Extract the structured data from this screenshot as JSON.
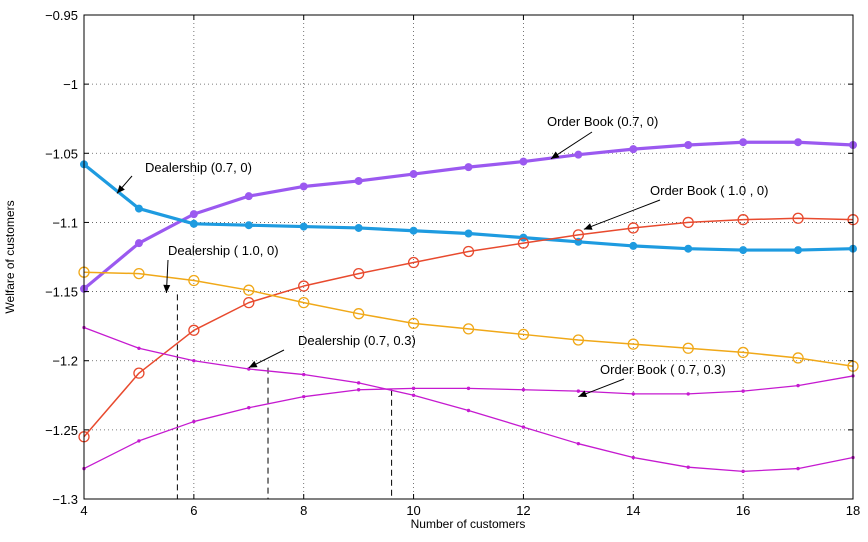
{
  "chart_data": {
    "type": "line",
    "title": "",
    "xlabel": "Number of customers",
    "ylabel": "Welfare of customers",
    "xlim": [
      4,
      18
    ],
    "ylim": [
      -1.3,
      -0.95
    ],
    "grid": true,
    "x_ticks": [
      4,
      6,
      8,
      10,
      12,
      14,
      16,
      18
    ],
    "x_tick_labels": [
      "4",
      "6",
      "8",
      "10",
      "12",
      "14",
      "16",
      "18"
    ],
    "y_ticks": [
      -1.3,
      -1.25,
      -1.2,
      -1.15,
      -1.1,
      -1.05,
      -1.0,
      -0.95
    ],
    "y_tick_labels": [
      "−1.3",
      "−1.25",
      "−1.2",
      "−1.15",
      "−1.1",
      "−1.05",
      "−1",
      "−0.95"
    ],
    "x": [
      4,
      5,
      6,
      7,
      8,
      9,
      10,
      11,
      12,
      13,
      14,
      15,
      16,
      17,
      18
    ],
    "series": [
      {
        "name": "Order Book (0.7, 0)",
        "color": "#9b59f0",
        "marker": "filled-dot",
        "values": [
          -1.148,
          -1.115,
          -1.094,
          -1.081,
          -1.074,
          -1.07,
          -1.065,
          -1.06,
          -1.056,
          -1.051,
          -1.047,
          -1.044,
          -1.042,
          -1.042,
          -1.044
        ]
      },
      {
        "name": "Dealership (0.7, 0)",
        "color": "#1e9be0",
        "marker": "filled-dot",
        "values": [
          -1.058,
          -1.09,
          -1.101,
          -1.102,
          -1.103,
          -1.104,
          -1.106,
          -1.108,
          -1.111,
          -1.114,
          -1.117,
          -1.119,
          -1.12,
          -1.12,
          -1.119
        ]
      },
      {
        "name": "Order Book ( 1.0 , 0)",
        "color": "#e84a2e",
        "marker": "open-circle",
        "values": [
          -1.255,
          -1.209,
          -1.178,
          -1.158,
          -1.146,
          -1.137,
          -1.129,
          -1.121,
          -1.115,
          -1.109,
          -1.104,
          -1.1,
          -1.098,
          -1.097,
          -1.098
        ]
      },
      {
        "name": "Dealership ( 1.0, 0)",
        "color": "#f0a818",
        "marker": "open-circle",
        "values": [
          -1.136,
          -1.137,
          -1.142,
          -1.149,
          -1.158,
          -1.166,
          -1.173,
          -1.177,
          -1.181,
          -1.185,
          -1.188,
          -1.191,
          -1.194,
          -1.198,
          -1.204
        ]
      },
      {
        "name": "Dealership (0.7, 0.3)",
        "color": "#c51ad0",
        "marker": "small-dot",
        "values": [
          -1.176,
          -1.191,
          -1.2,
          -1.206,
          -1.21,
          -1.216,
          -1.225,
          -1.236,
          -1.248,
          -1.26,
          -1.27,
          -1.277,
          -1.28,
          -1.278,
          -1.27
        ]
      },
      {
        "name": "Order Book ( 0.7, 0.3)",
        "color": "#c51ad0",
        "marker": "small-dot",
        "values": [
          -1.278,
          -1.258,
          -1.244,
          -1.234,
          -1.226,
          -1.221,
          -1.22,
          -1.22,
          -1.221,
          -1.222,
          -1.224,
          -1.224,
          -1.222,
          -1.218,
          -1.211
        ]
      }
    ],
    "annotations": [
      {
        "text": "Dealership (0.7, 0)",
        "target": [
          4.6,
          -1.079
        ]
      },
      {
        "text": "Order Book (0.7, 0)",
        "target": [
          12.5,
          -1.054
        ]
      },
      {
        "text": "Order Book  ( 1.0 , 0)",
        "target": [
          13.1,
          -1.105
        ]
      },
      {
        "text": "Dealership ( 1.0, 0)",
        "target": [
          5.5,
          -1.151
        ]
      },
      {
        "text": "Dealership (0.7, 0.3)",
        "target": [
          7.0,
          -1.205
        ]
      },
      {
        "text": "Order Book ( 0.7, 0.3)",
        "target": [
          13.0,
          -1.226
        ]
      }
    ],
    "vertical_dashed_lines": [
      {
        "x": 5.7,
        "y_top": -1.152
      },
      {
        "x": 7.35,
        "y_top": -1.205
      },
      {
        "x": 9.6,
        "y_top": -1.221
      }
    ]
  }
}
